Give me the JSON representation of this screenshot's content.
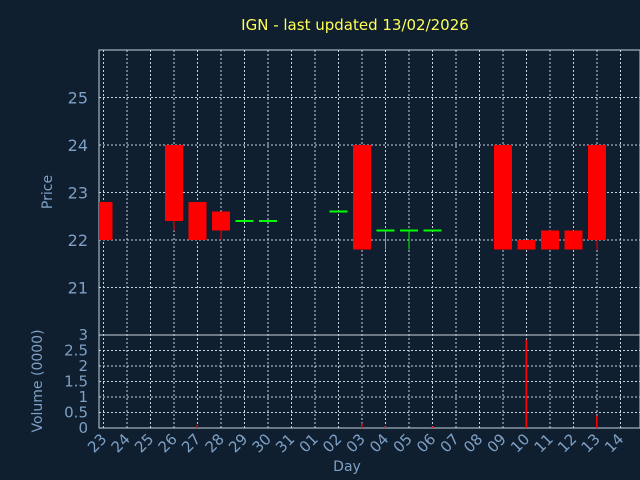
{
  "chart_data": {
    "type": "candlestick",
    "title": "IGN - last updated 13/02/2026",
    "colors": {
      "background": "#0f1f30",
      "axis_text": "#7ea0c4",
      "title": "#ffff55",
      "grid": "#c8d2dc",
      "down_candle": "#ff0000",
      "flat_candle": "#00ff00",
      "volume_bar": "#ff0000"
    },
    "x": {
      "label": "Day",
      "ticks": [
        "23",
        "24",
        "25",
        "26",
        "27",
        "28",
        "29",
        "30",
        "31",
        "01",
        "02",
        "03",
        "04",
        "05",
        "06",
        "07",
        "08",
        "09",
        "10",
        "11",
        "12",
        "13",
        "14"
      ]
    },
    "price": {
      "ylabel": "Price",
      "ylim": [
        20,
        26
      ],
      "ticks": [
        21,
        22,
        23,
        24,
        25
      ],
      "candles": [
        {
          "day": "23",
          "open": 22.8,
          "high": 22.8,
          "low": 22.0,
          "close": 22.0
        },
        {
          "day": "26",
          "open": 24.0,
          "high": 24.0,
          "low": 22.2,
          "close": 22.4
        },
        {
          "day": "27",
          "open": 22.8,
          "high": 22.8,
          "low": 22.0,
          "close": 22.0
        },
        {
          "day": "28",
          "open": 22.6,
          "high": 22.6,
          "low": 22.0,
          "close": 22.2
        },
        {
          "day": "29",
          "open": 22.4,
          "high": 22.4,
          "low": 22.4,
          "close": 22.4
        },
        {
          "day": "30",
          "open": 22.4,
          "high": 22.4,
          "low": 22.4,
          "close": 22.4
        },
        {
          "day": "02",
          "open": 22.6,
          "high": 22.6,
          "low": 22.6,
          "close": 22.6
        },
        {
          "day": "03",
          "open": 24.0,
          "high": 24.0,
          "low": 21.8,
          "close": 21.8
        },
        {
          "day": "04",
          "open": 22.2,
          "high": 22.2,
          "low": 21.8,
          "close": 22.2
        },
        {
          "day": "05",
          "open": 22.2,
          "high": 22.2,
          "low": 21.8,
          "close": 22.2
        },
        {
          "day": "06",
          "open": 22.2,
          "high": 22.2,
          "low": 22.2,
          "close": 22.2
        },
        {
          "day": "09",
          "open": 24.0,
          "high": 24.0,
          "low": 21.8,
          "close": 21.8
        },
        {
          "day": "10",
          "open": 22.0,
          "high": 22.0,
          "low": 21.8,
          "close": 21.8
        },
        {
          "day": "11",
          "open": 22.2,
          "high": 22.2,
          "low": 21.8,
          "close": 21.8
        },
        {
          "day": "12",
          "open": 22.2,
          "high": 22.2,
          "low": 21.8,
          "close": 21.8
        },
        {
          "day": "13",
          "open": 24.0,
          "high": 24.0,
          "low": 21.8,
          "close": 22.0
        }
      ]
    },
    "volume": {
      "ylabel": "Volume (0000)",
      "ylim": [
        0,
        3
      ],
      "ticks": [
        0,
        0.5,
        1,
        1.5,
        2,
        2.5,
        3
      ],
      "tick_labels": [
        "0",
        "0.5",
        "1",
        "1.5",
        "2",
        "2.5",
        "3"
      ],
      "bars": [
        {
          "day": "27",
          "value": 0.1
        },
        {
          "day": "03",
          "value": 0.15
        },
        {
          "day": "04",
          "value": 0.05
        },
        {
          "day": "06",
          "value": 0.05
        },
        {
          "day": "10",
          "value": 2.85
        },
        {
          "day": "13",
          "value": 0.4
        }
      ]
    }
  }
}
